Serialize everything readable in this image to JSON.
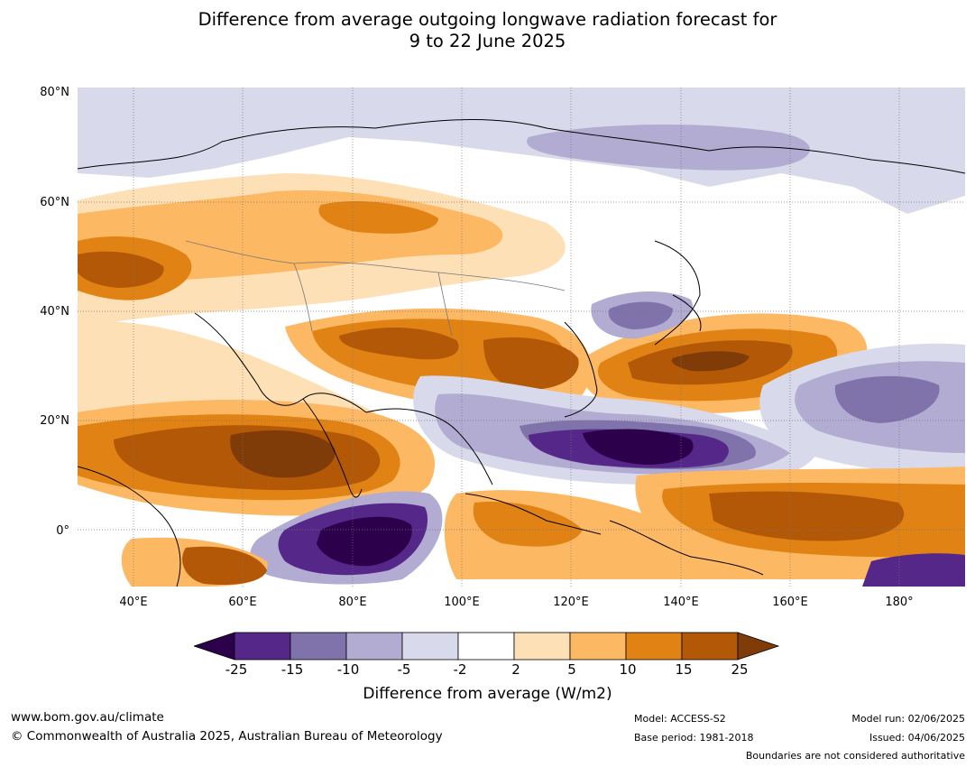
{
  "title_line1": "Difference from average outgoing longwave radiation forecast for",
  "title_line2": "9 to 22 June 2025",
  "lat_labels": [
    "80°N",
    "60°N",
    "40°N",
    "20°N",
    "0°"
  ],
  "lon_labels": [
    "40°E",
    "60°E",
    "80°E",
    "100°E",
    "120°E",
    "140°E",
    "160°E",
    "180°"
  ],
  "colorbar": {
    "ticks": [
      "-25",
      "-15",
      "-10",
      "-5",
      "-2",
      "2",
      "5",
      "10",
      "15",
      "25"
    ],
    "colors": [
      "#2d004b",
      "#542788",
      "#8073ac",
      "#b2abd2",
      "#d8daeb",
      "#ffffff",
      "#fee0b6",
      "#fdb863",
      "#e08214",
      "#b35806",
      "#7f3b08"
    ],
    "label": "Difference from average (W/m2)"
  },
  "footer": {
    "url": "www.bom.gov.au/climate",
    "copyright": "© Commonwealth of Australia 2025, Australian Bureau of Meteorology",
    "model": "Model: ACCESS-S2",
    "base_period": "Base period: 1981-2018",
    "model_run": "Model run: 02/06/2025",
    "issued": "Issued: 04/06/2025",
    "disclaimer": "Boundaries are not considered authoritative"
  }
}
